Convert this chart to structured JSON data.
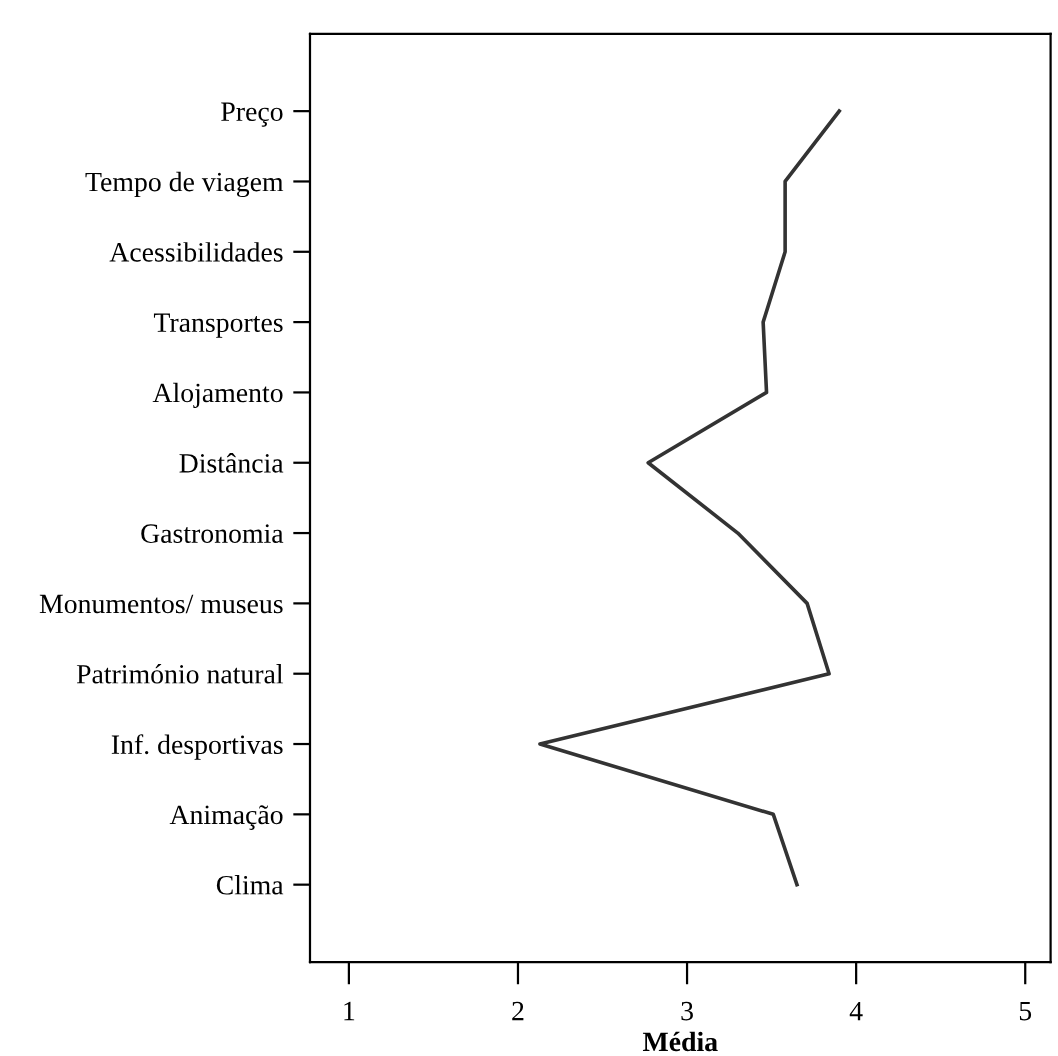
{
  "chart_data": {
    "type": "line",
    "orientation": "horizontal",
    "xlabel": "Média",
    "categories": [
      "Preço",
      "Tempo de viagem",
      "Acessibilidades",
      "Transportes",
      "Alojamento",
      "Distância",
      "Gastronomia",
      "Monumentos/ museus",
      "Património natural",
      "Inf. desportivas",
      "Animação",
      "Clima"
    ],
    "series": [
      {
        "color": "#333333",
        "values": [
          3.9,
          3.58,
          3.58,
          3.45,
          3.47,
          2.77,
          3.3,
          3.71,
          3.84,
          2.13,
          3.51,
          3.65
        ]
      }
    ],
    "xlim": [
      0.77,
      5.15
    ],
    "xticks": [
      1,
      2,
      3,
      4,
      5
    ],
    "grid": false,
    "legend": false,
    "marker": "none",
    "line_style": "solid"
  }
}
